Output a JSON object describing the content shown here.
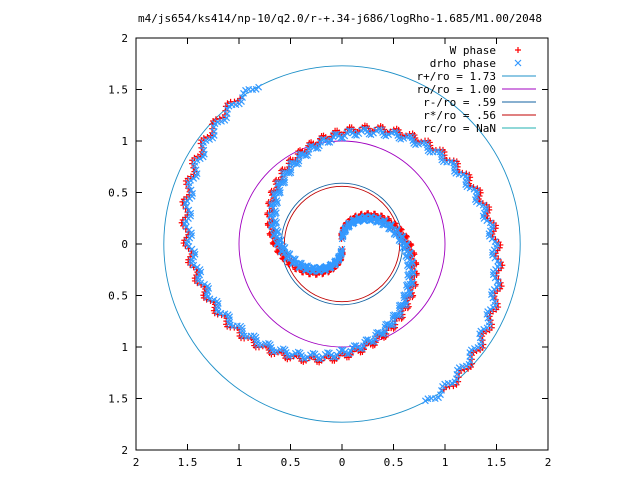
{
  "chart_data": {
    "type": "scatter",
    "title": "m4/js654/ks414/np-10/q2.0/r-+.34-j686/logRho-1.685/M1.00/2048",
    "xlabel": "",
    "ylabel": "",
    "xlim": [
      -2,
      2
    ],
    "ylim": [
      -2,
      2
    ],
    "x_ticks": [
      -2,
      -1.5,
      -1,
      -0.5,
      0,
      0.5,
      1,
      1.5,
      2
    ],
    "y_ticks": [
      -2,
      -1.5,
      -1,
      -0.5,
      0,
      0.5,
      1,
      1.5,
      2
    ],
    "x_tick_labels": [
      "2",
      "1.5",
      "1",
      "0.5",
      "0",
      "0.5",
      "1",
      "1.5",
      "2"
    ],
    "y_tick_labels": [
      "2",
      "1.5",
      "1",
      "0.5",
      "0",
      "0.5",
      "1",
      "1.5",
      "2"
    ],
    "grid": false,
    "legend_position": "top-right",
    "series": [
      {
        "name": "W phase",
        "kind": "points",
        "marker": "plus",
        "color": "#ff0000",
        "spiral_arms": [
          {
            "r_start": 0.05,
            "r_end": 1.75,
            "theta_start_deg": 95,
            "sweep_deg": 330
          },
          {
            "r_start": 0.05,
            "r_end": 1.75,
            "theta_start_deg": 275,
            "sweep_deg": 330
          }
        ]
      },
      {
        "name": "drho phase",
        "kind": "points",
        "marker": "cross",
        "color": "#3399ff",
        "spiral_arms": [
          {
            "r_start": 0.05,
            "r_end": 1.75,
            "theta_start_deg": 88,
            "sweep_deg": 330
          },
          {
            "r_start": 0.05,
            "r_end": 1.75,
            "theta_start_deg": 268,
            "sweep_deg": 330
          }
        ]
      },
      {
        "name": "r+/ro = 1.73",
        "kind": "circle",
        "radius": 1.73,
        "color": "#1e90c8"
      },
      {
        "name": "ro/ro = 1.00",
        "kind": "circle",
        "radius": 1.0,
        "color": "#a000c0"
      },
      {
        "name": "r-/ro = .59",
        "kind": "circle",
        "radius": 0.59,
        "color": "#1060a0"
      },
      {
        "name": "r*/ro = .56",
        "kind": "circle",
        "radius": 0.56,
        "color": "#c00000"
      },
      {
        "name": "rc/ro = NaN",
        "kind": "circle",
        "radius": null,
        "color": "#20b0b0"
      }
    ]
  }
}
